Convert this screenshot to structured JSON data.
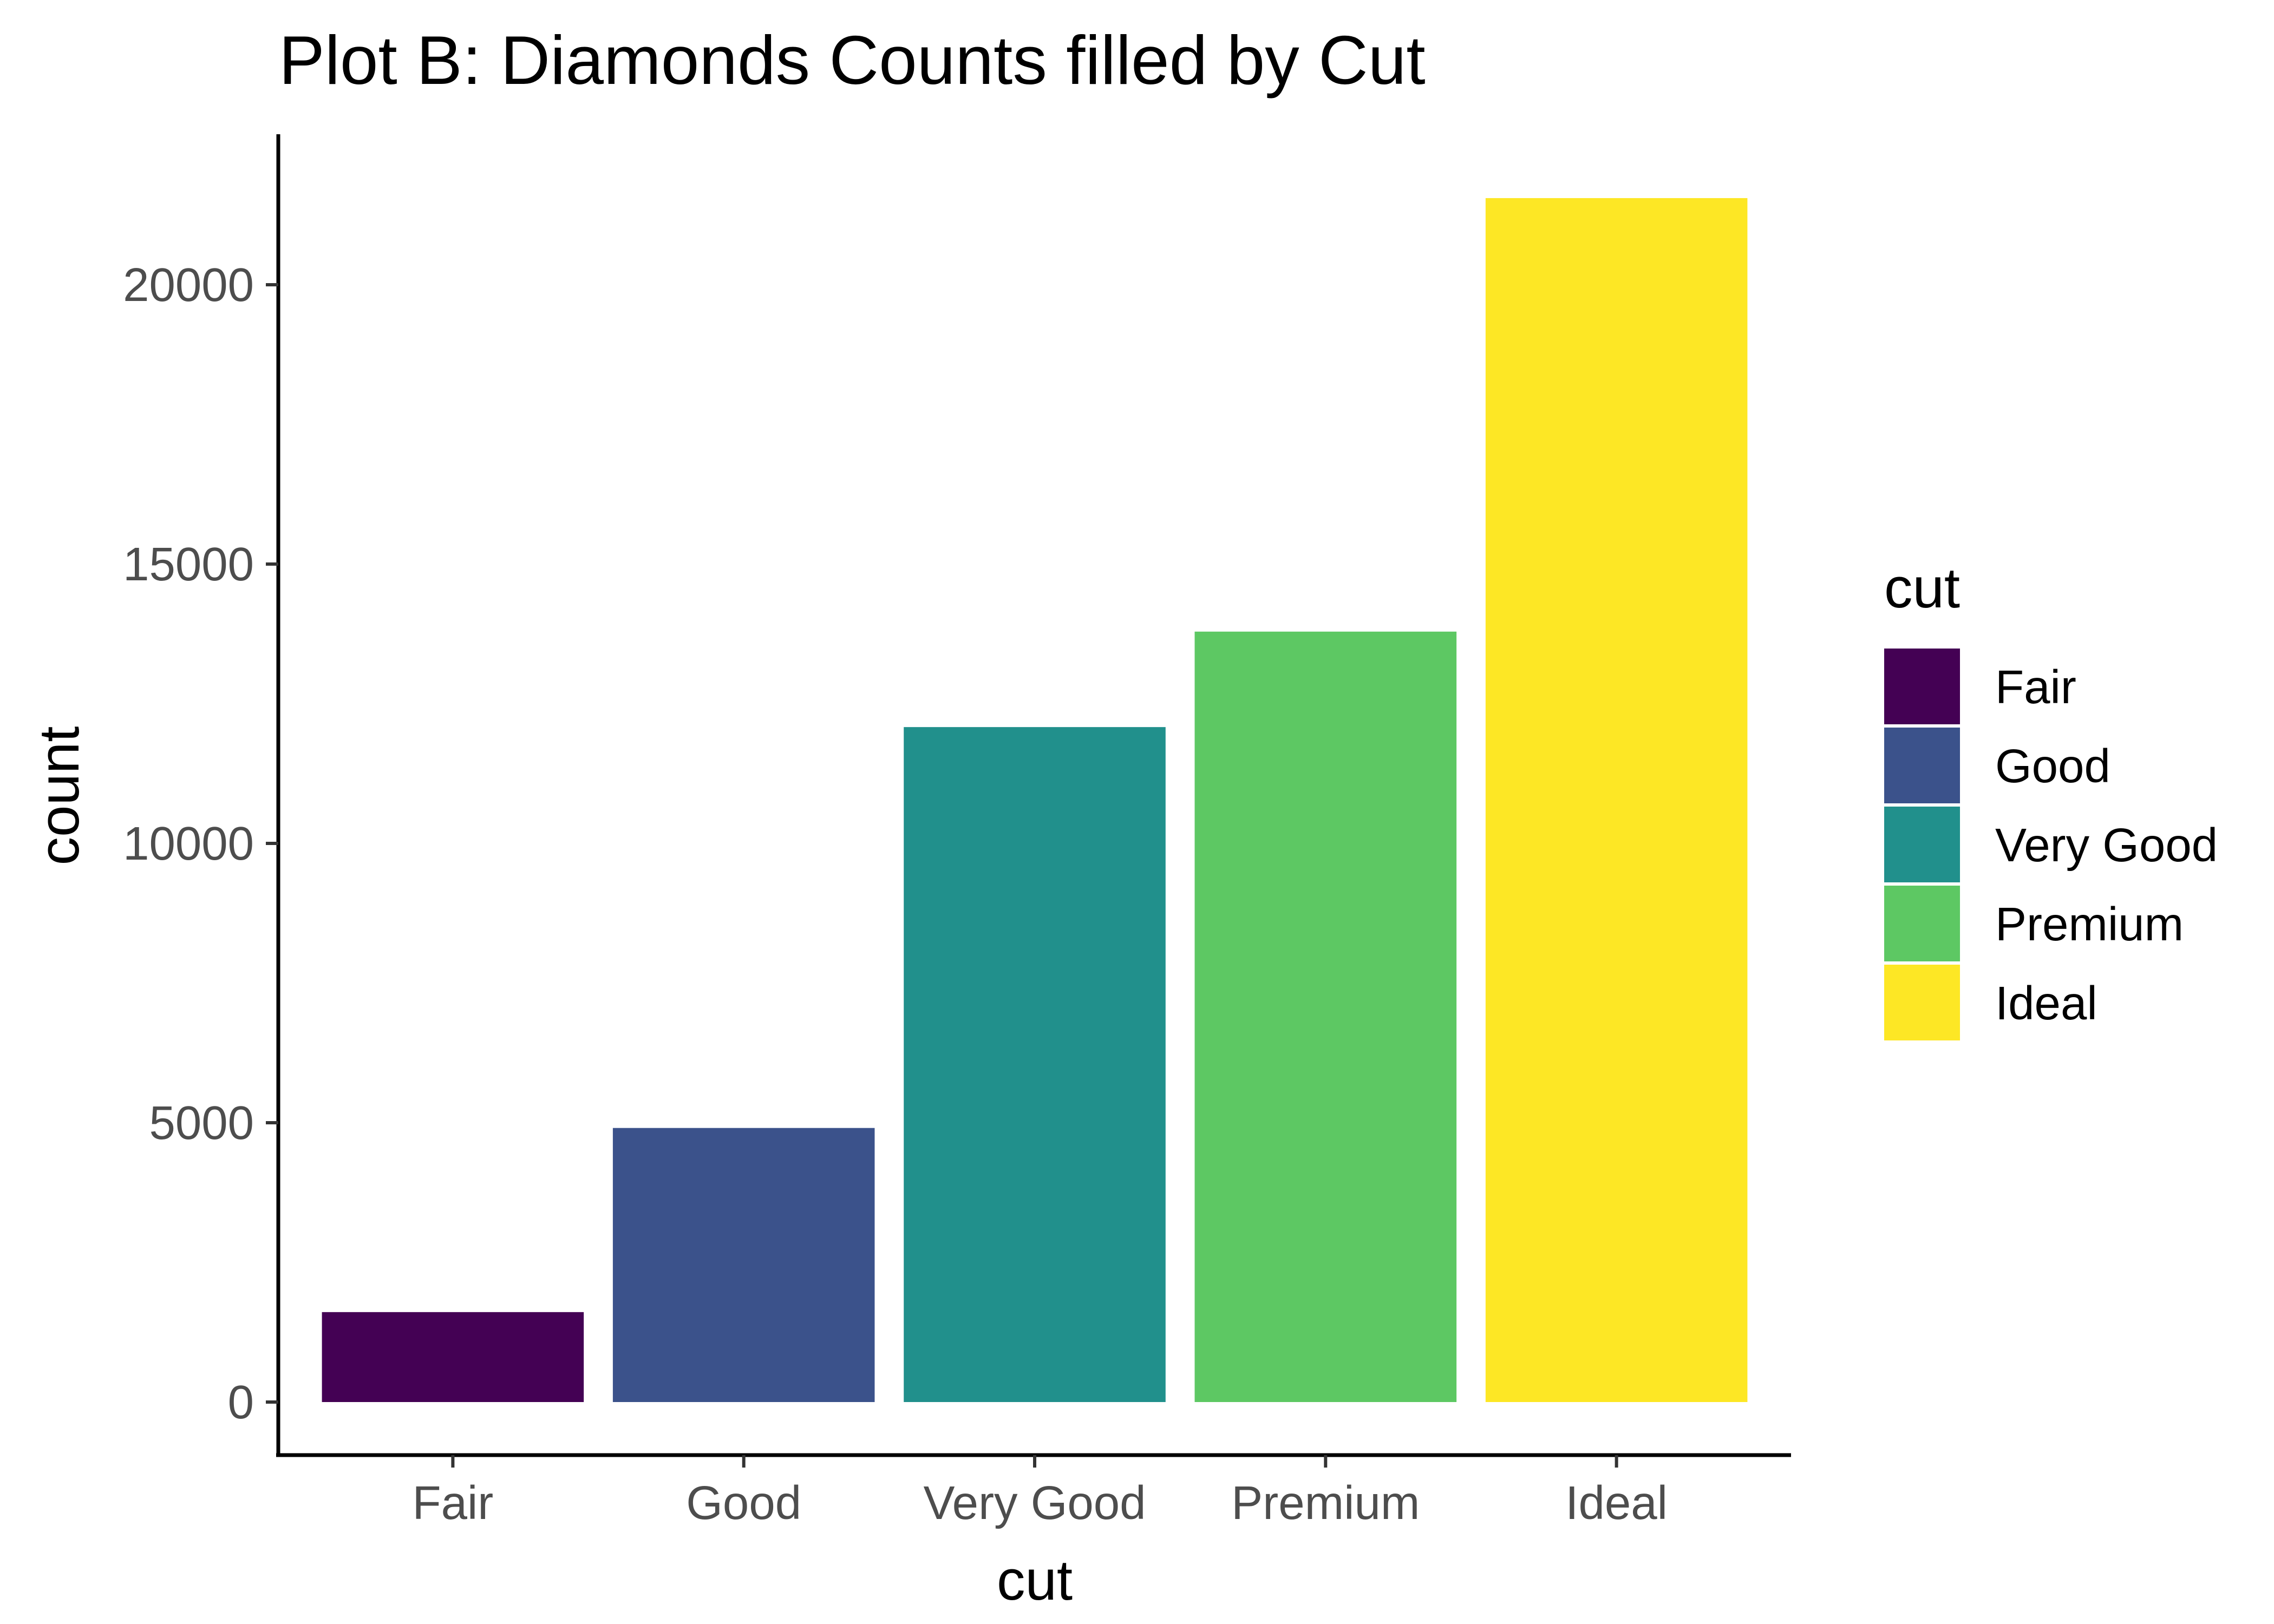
{
  "chart_data": {
    "type": "bar",
    "title": "Plot B: Diamonds Counts filled by Cut",
    "xlabel": "cut",
    "ylabel": "count",
    "categories": [
      "Fair",
      "Good",
      "Very Good",
      "Premium",
      "Ideal"
    ],
    "values": [
      1610,
      4906,
      12082,
      13791,
      21551
    ],
    "colors": [
      "#440154",
      "#3B528B",
      "#21908C",
      "#5DC863",
      "#FDE725"
    ],
    "y_ticks": [
      0,
      5000,
      10000,
      15000,
      20000
    ],
    "y_tick_labels": [
      "0",
      "5000",
      "10000",
      "15000",
      "20000"
    ],
    "ylim": [
      -1080,
      22630
    ],
    "legend": {
      "title": "cut",
      "position": "right",
      "entries": [
        "Fair",
        "Good",
        "Very Good",
        "Premium",
        "Ideal"
      ]
    },
    "grid": false
  }
}
